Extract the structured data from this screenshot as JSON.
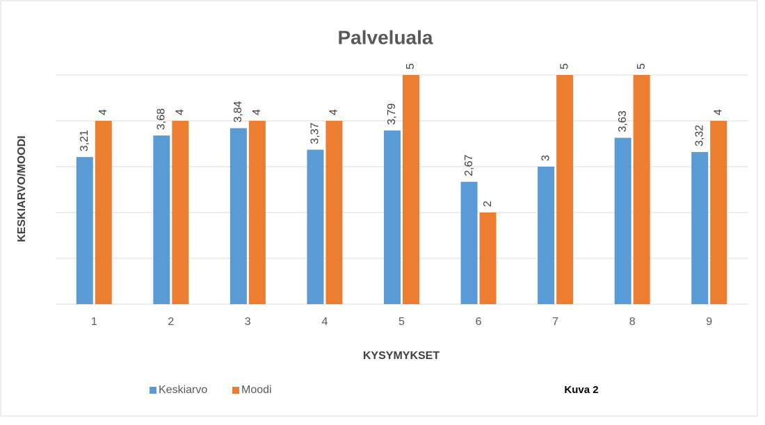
{
  "chart_data": {
    "type": "bar",
    "title": "Palveluala",
    "x_label": "KYSYMYKSET",
    "y_label": "KESKIARVO/MOODI",
    "annotation": "Kuva 2",
    "categories": [
      "1",
      "2",
      "3",
      "4",
      "5",
      "6",
      "7",
      "8",
      "9"
    ],
    "series": [
      {
        "name": "Keskiarvo",
        "color": "#5b9bd5",
        "values": [
          3.21,
          3.68,
          3.84,
          3.37,
          3.79,
          2.67,
          3,
          3.63,
          3.32
        ],
        "value_labels": [
          "3,21",
          "3,68",
          "3,84",
          "3,37",
          "3,79",
          "2,67",
          "3",
          "3,63",
          "3,32"
        ]
      },
      {
        "name": "Moodi",
        "color": "#ed7d31",
        "values": [
          4,
          4,
          4,
          4,
          5,
          2,
          5,
          5,
          4
        ]
      }
    ],
    "ylim": [
      0,
      5
    ],
    "yticks": [
      0,
      1,
      2,
      3,
      4,
      5
    ],
    "grid": true,
    "legend": "bottom-left"
  }
}
